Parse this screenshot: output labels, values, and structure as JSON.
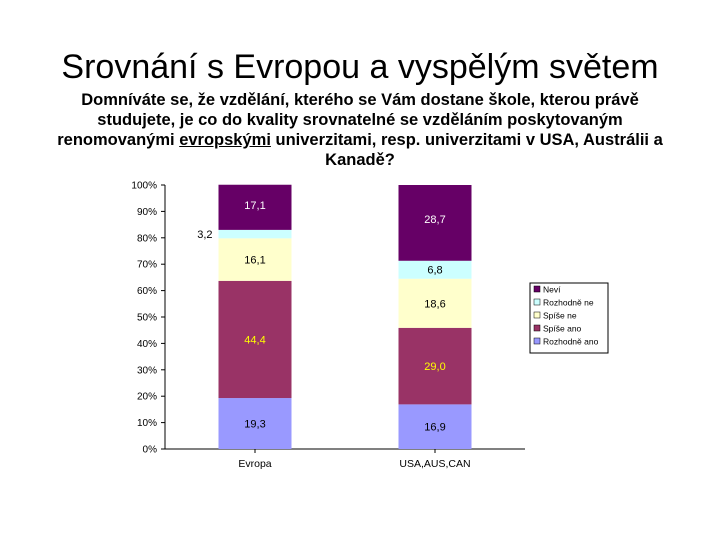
{
  "slide": {
    "title": "Srovnání s Evropou a vyspělým světem",
    "question_part1": "Domníváte se, že vzdělání, kterého se Vám dostane škole, kterou právě studujete, je co do kvality srovnatelné se vzděláním poskytovaným renomovanými ",
    "question_underlined": "evropskými",
    "question_part2": " univerzitami, resp. univerzitami v USA, Austrálii a Kanadě?"
  },
  "chart_data": {
    "type": "bar",
    "stacked": true,
    "categories": [
      "Evropa",
      "USA,AUS,CAN"
    ],
    "series": [
      {
        "name": "Rozhodně ano",
        "values": [
          19.3,
          16.9
        ],
        "labels": [
          "19,3",
          "16,9"
        ],
        "color": "#9999ff",
        "label_color": "#000000"
      },
      {
        "name": "Spíše ano",
        "values": [
          44.4,
          29.0
        ],
        "labels": [
          "44,4",
          "29,0"
        ],
        "color": "#993366",
        "label_color": "#ffff00"
      },
      {
        "name": "Spíše ne",
        "values": [
          16.1,
          18.6
        ],
        "labels": [
          "16,1",
          "18,6"
        ],
        "color": "#ffffcc",
        "label_color": "#000000"
      },
      {
        "name": "Rozhodně ne",
        "values": [
          3.2,
          6.8
        ],
        "labels": [
          "3,2",
          "6,8"
        ],
        "color": "#ccffff",
        "label_color": "#000000"
      },
      {
        "name": "Neví",
        "values": [
          17.1,
          28.7
        ],
        "labels": [
          "17,1",
          "28,7"
        ],
        "color": "#660066",
        "label_color": "#ffffff"
      }
    ],
    "y_ticks": [
      "0%",
      "10%",
      "20%",
      "30%",
      "40%",
      "50%",
      "60%",
      "70%",
      "80%",
      "90%",
      "100%"
    ],
    "ylim": [
      0,
      100
    ],
    "grid": false,
    "legend_position": "right"
  }
}
